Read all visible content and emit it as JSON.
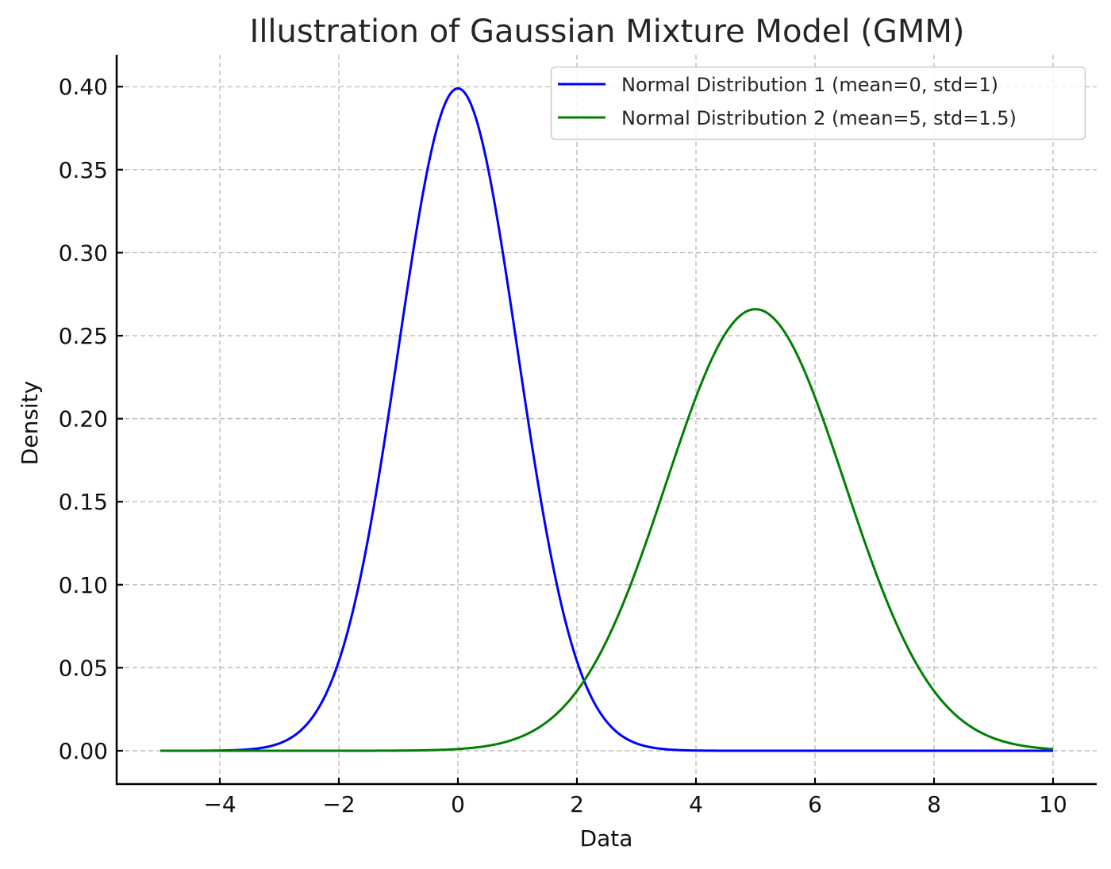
{
  "chart_data": {
    "type": "line",
    "title": "Illustration of Gaussian Mixture Model (GMM)",
    "xlabel": "Data",
    "ylabel": "Density",
    "xlim": [
      -5.6,
      10.75
    ],
    "ylim": [
      -0.02,
      0.42
    ],
    "grid": true,
    "legend_position": "upper right",
    "x_ticks": [
      -4,
      -2,
      0,
      2,
      4,
      6,
      8,
      10
    ],
    "x_tick_labels": [
      "−4",
      "−2",
      "0",
      "2",
      "4",
      "6",
      "8",
      "10"
    ],
    "y_ticks": [
      0.0,
      0.05,
      0.1,
      0.15,
      0.2,
      0.25,
      0.3,
      0.35,
      0.4
    ],
    "y_tick_labels": [
      "0.00",
      "0.05",
      "0.10",
      "0.15",
      "0.20",
      "0.25",
      "0.30",
      "0.35",
      "0.40"
    ],
    "x_range": [
      -5,
      10
    ],
    "series": [
      {
        "name": "Normal Distribution 1 (mean=0, std=1)",
        "color": "#0000ff",
        "mean": 0,
        "std": 1,
        "x": [
          -5,
          -4,
          -3,
          -2,
          -1,
          0,
          1,
          2,
          3,
          4,
          5,
          6,
          7,
          8,
          9,
          10
        ],
        "values": [
          0.0,
          0.0001,
          0.0044,
          0.054,
          0.242,
          0.3989,
          0.242,
          0.054,
          0.0044,
          0.0001,
          0.0,
          0.0,
          0.0,
          0.0,
          0.0,
          0.0
        ]
      },
      {
        "name": "Normal Distribution 2 (mean=5, std=1.5)",
        "color": "#008000",
        "mean": 5,
        "std": 1.5,
        "x": [
          -5,
          -4,
          -3,
          -2,
          -1,
          0,
          1,
          2,
          3,
          4,
          5,
          6,
          7,
          8,
          9,
          10
        ],
        "values": [
          0.0,
          0.0,
          0.0,
          0.0,
          0.0001,
          0.001,
          0.0076,
          0.036,
          0.1093,
          0.213,
          0.266,
          0.213,
          0.1093,
          0.036,
          0.0076,
          0.001
        ]
      }
    ]
  }
}
